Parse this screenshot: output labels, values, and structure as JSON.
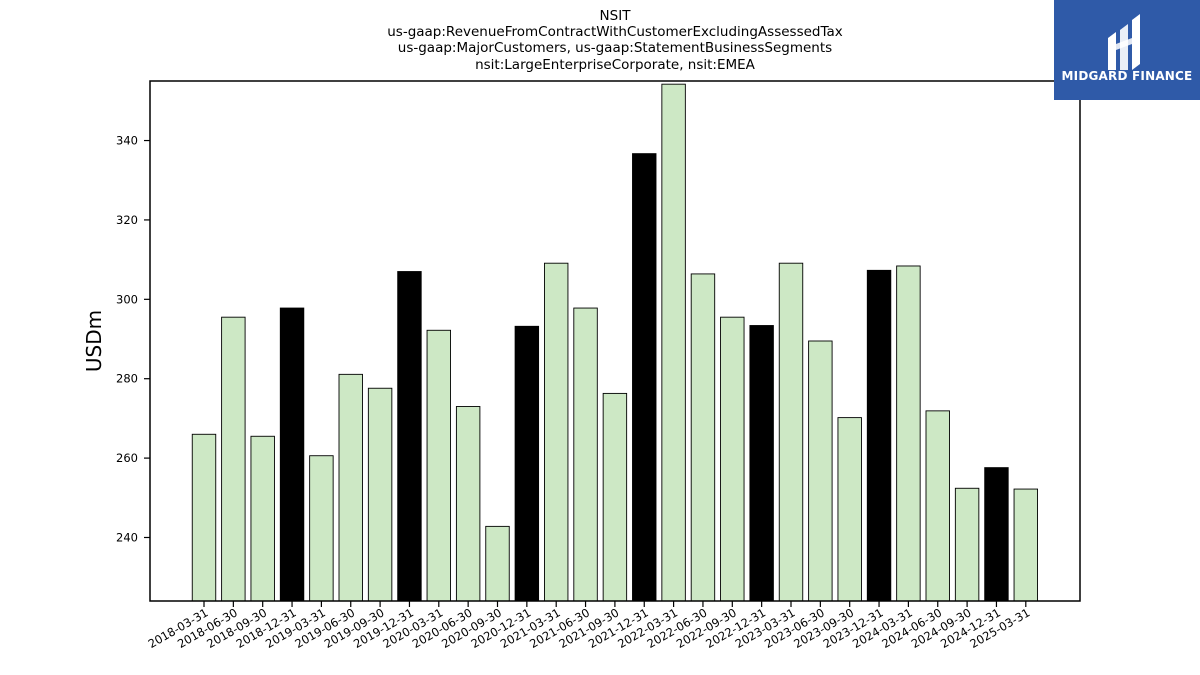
{
  "header": {
    "title_lines": [
      "NSIT",
      "us-gaap:RevenueFromContractWithCustomerExcludingAssessedTax",
      "us-gaap:MajorCustomers, us-gaap:StatementBusinessSegments",
      "nsit:LargeEnterpriseCorporate, nsit:EMEA"
    ]
  },
  "logo": {
    "text": "MIDGARD FINANCE",
    "background": "#2f5aa8"
  },
  "colors": {
    "quarter_bar": "#cde8c5",
    "year_end_bar": "#000000",
    "edge": "#000000"
  },
  "chart_data": {
    "type": "bar",
    "ylabel": "USDm",
    "xlabel": "",
    "ylim": [
      224,
      355
    ],
    "yticks": [
      240,
      260,
      280,
      300,
      320,
      340
    ],
    "categories": [
      "2018-03-31",
      "2018-06-30",
      "2018-09-30",
      "2018-12-31",
      "2019-03-31",
      "2019-06-30",
      "2019-09-30",
      "2019-12-31",
      "2020-03-31",
      "2020-06-30",
      "2020-09-30",
      "2020-12-31",
      "2021-03-31",
      "2021-06-30",
      "2021-09-30",
      "2021-12-31",
      "2022-03-31",
      "2022-06-30",
      "2022-09-30",
      "2022-12-31",
      "2023-03-31",
      "2023-06-30",
      "2023-09-30",
      "2023-12-31",
      "2024-03-31",
      "2024-06-30",
      "2024-09-30",
      "2024-12-31",
      "2025-03-31"
    ],
    "values": [
      266.0,
      295.5,
      265.5,
      297.8,
      260.6,
      281.1,
      277.6,
      307.0,
      292.2,
      273.0,
      242.8,
      293.2,
      309.1,
      297.8,
      276.3,
      336.7,
      354.2,
      306.4,
      295.5,
      293.4,
      309.1,
      289.5,
      270.2,
      307.3,
      308.4,
      271.9,
      252.4,
      257.6,
      252.2
    ],
    "highlight": [
      false,
      false,
      false,
      true,
      false,
      false,
      false,
      true,
      false,
      false,
      false,
      true,
      false,
      false,
      false,
      true,
      false,
      false,
      false,
      true,
      false,
      false,
      false,
      true,
      false,
      false,
      false,
      true,
      false
    ]
  }
}
